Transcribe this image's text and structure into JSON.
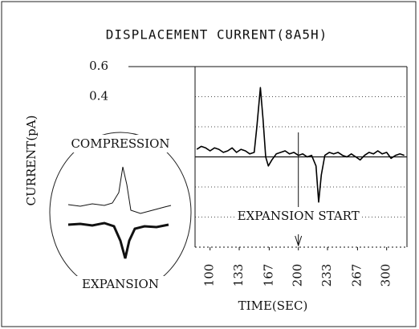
{
  "chart_data": {
    "type": "line",
    "title": "DISPLACEMENT CURRENT(8A5H)",
    "y_label": "CURRENT(pA)",
    "x_label": "TIME(SEC)",
    "annotations": {
      "compression": "COMPRESSION",
      "expansion": "EXPANSION",
      "expansion_start": "EXPANSION START"
    },
    "event_x": 200,
    "xlim": [
      83,
      323
    ],
    "ylim": [
      -0.6,
      0.6
    ],
    "xticks": [
      100,
      133,
      167,
      200,
      233,
      267,
      300
    ],
    "yticks": [
      0.6,
      0.4
    ],
    "grid_lines": [
      0.4,
      0.2,
      0,
      -0.2,
      -0.4
    ],
    "series": [
      {
        "name": "current",
        "color": "#000000",
        "x": [
          85,
          90,
          95,
          100,
          105,
          110,
          115,
          120,
          125,
          130,
          135,
          140,
          145,
          150,
          153,
          157,
          160,
          163,
          166,
          170,
          175,
          180,
          185,
          190,
          195,
          200,
          205,
          210,
          215,
          220,
          223,
          226,
          230,
          235,
          240,
          245,
          250,
          255,
          260,
          265,
          270,
          275,
          280,
          285,
          290,
          295,
          300,
          305,
          310,
          315,
          320
        ],
        "values": [
          0.05,
          0.07,
          0.06,
          0.04,
          0.06,
          0.05,
          0.03,
          0.04,
          0.06,
          0.03,
          0.05,
          0.04,
          0.02,
          0.03,
          0.2,
          0.46,
          0.25,
          0.0,
          -0.06,
          -0.02,
          0.02,
          0.03,
          0.04,
          0.02,
          0.03,
          0.01,
          0.02,
          0.0,
          0.01,
          -0.06,
          -0.3,
          -0.12,
          0.01,
          0.03,
          0.02,
          0.03,
          0.01,
          0.0,
          0.02,
          0.0,
          -0.02,
          0.01,
          0.03,
          0.02,
          0.04,
          0.02,
          0.03,
          -0.01,
          0.01,
          0.02,
          0.01
        ]
      }
    ]
  }
}
